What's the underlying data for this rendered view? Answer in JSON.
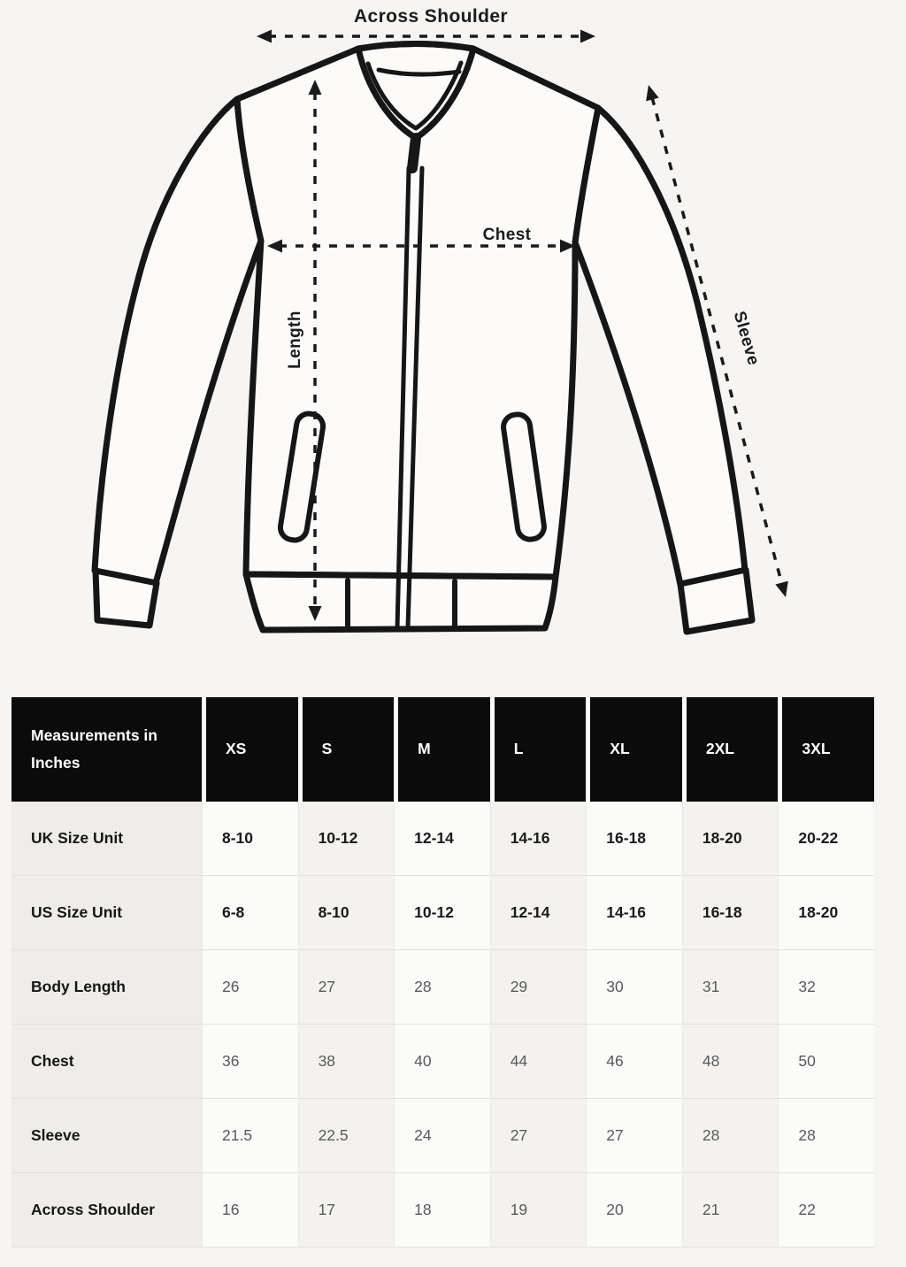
{
  "diagram": {
    "labels": {
      "across_shoulder": "Across Shoulder",
      "chest": "Chest",
      "length": "Length",
      "sleeve": "Sleeve"
    }
  },
  "chart_data": {
    "type": "table",
    "title": "Measurements in Inches",
    "columns": [
      "Measurements in Inches",
      "XS",
      "S",
      "M",
      "L",
      "XL",
      "2XL",
      "3XL"
    ],
    "rows": [
      [
        "UK Size Unit",
        "8-10",
        "10-12",
        "12-14",
        "14-16",
        "16-18",
        "18-20",
        "20-22"
      ],
      [
        "US Size Unit",
        "6-8",
        "8-10",
        "10-12",
        "12-14",
        "14-16",
        "16-18",
        "18-20"
      ],
      [
        "Body Length",
        "26",
        "27",
        "28",
        "29",
        "30",
        "31",
        "32"
      ],
      [
        "Chest",
        "36",
        "38",
        "40",
        "44",
        "46",
        "48",
        "50"
      ],
      [
        "Sleeve",
        "21.5",
        "22.5",
        "24",
        "27",
        "27",
        "28",
        "28"
      ],
      [
        "Across Shoulder",
        "16",
        "17",
        "18",
        "19",
        "20",
        "21",
        "22"
      ]
    ]
  },
  "colors": {
    "page_bg": "#f6f5f3",
    "ink": "#161616",
    "jacket_fill": "#fcfbf9",
    "header_bg": "#0b0b0b",
    "header_text": "#ffffff",
    "label_col_bg": "#efedea",
    "col_bg_a": "#fbfbfa",
    "col_bg_b": "#f4f2ef",
    "row_line": "#e3e1de",
    "value_text": "#58595b"
  }
}
